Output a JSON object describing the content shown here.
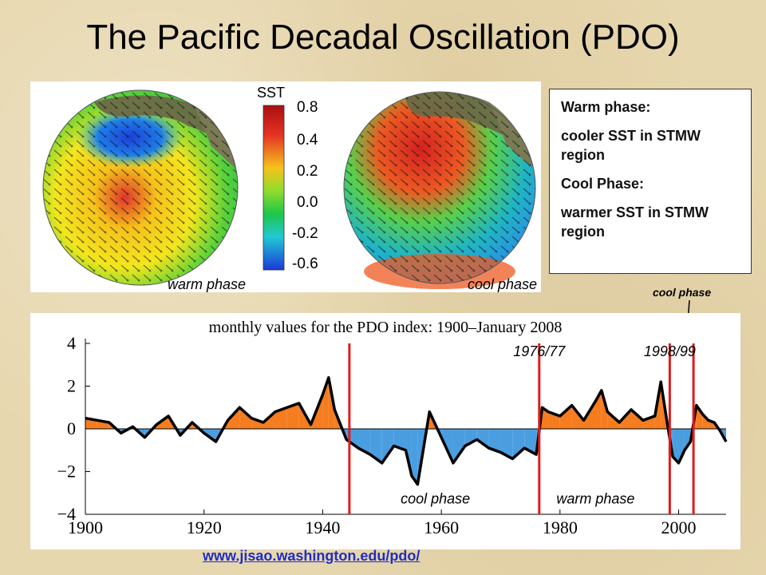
{
  "slide": {
    "title": "The Pacific Decadal Oscillation (PDO)",
    "footer_link": "www.jisao.washington.edu/pdo/"
  },
  "maps": {
    "colorbar_title": "SST",
    "colorbar_ticks": [
      "0.8",
      "0.4",
      "0.2",
      "0.0",
      "-0.2",
      "-0.6"
    ],
    "left_caption": "warm phase",
    "right_caption": "cool phase"
  },
  "info_box": {
    "warm_heading": "Warm phase:",
    "warm_text": "cooler SST in STMW region",
    "cool_heading": "Cool Phase:",
    "cool_text": "warmer SST in STMW region"
  },
  "annotation": {
    "cool_phase_label": "cool phase"
  },
  "chart_data": {
    "type": "area",
    "title": "monthly values for the PDO index: 1900–January 2008",
    "xlim": [
      1900,
      2008
    ],
    "ylim": [
      -4,
      4
    ],
    "xticks": [
      1900,
      1920,
      1940,
      1960,
      1980,
      2000
    ],
    "xtick_labels": [
      "1900",
      "1920",
      "1940",
      "1960",
      "1980",
      "2000"
    ],
    "yticks": [
      4,
      2,
      0,
      -2,
      -4
    ],
    "ytick_labels": [
      "4",
      "2",
      "0",
      "−2",
      "−4"
    ],
    "positive_color": "#f57c1f",
    "negative_color": "#4a9ee0",
    "smoothed_color": "#000000",
    "regime_line_color": "#e01b1b",
    "x": [
      1900,
      1902,
      1904,
      1906,
      1908,
      1910,
      1912,
      1914,
      1916,
      1918,
      1920,
      1922,
      1924,
      1926,
      1928,
      1930,
      1932,
      1934,
      1936,
      1938,
      1940,
      1941,
      1942,
      1944,
      1946,
      1948,
      1950,
      1952,
      1954,
      1955,
      1956,
      1958,
      1960,
      1962,
      1964,
      1966,
      1968,
      1970,
      1972,
      1974,
      1976,
      1977,
      1978,
      1980,
      1982,
      1984,
      1986,
      1987,
      1988,
      1990,
      1992,
      1994,
      1996,
      1997,
      1998,
      1999,
      2000,
      2001,
      2002,
      2003,
      2004,
      2005,
      2006,
      2007,
      2008
    ],
    "values": [
      0.5,
      0.4,
      0.3,
      -0.2,
      0.1,
      -0.4,
      0.2,
      0.6,
      -0.3,
      0.3,
      -0.2,
      -0.6,
      0.4,
      1.0,
      0.5,
      0.3,
      0.8,
      1.0,
      1.2,
      0.2,
      1.6,
      2.4,
      0.9,
      -0.5,
      -0.9,
      -1.2,
      -1.6,
      -0.8,
      -1.0,
      -2.2,
      -2.6,
      0.8,
      -0.4,
      -1.6,
      -0.8,
      -0.5,
      -0.9,
      -1.1,
      -1.4,
      -0.9,
      -1.2,
      1.0,
      0.8,
      0.6,
      1.1,
      0.4,
      1.3,
      1.8,
      0.8,
      0.3,
      0.9,
      0.4,
      0.6,
      2.2,
      0.4,
      -1.3,
      -1.6,
      -1.0,
      -0.6,
      1.1,
      0.7,
      0.4,
      0.3,
      -0.1,
      -0.6
    ],
    "regime_lines": [
      1944.5,
      1976.5,
      1998.5,
      2002.5
    ],
    "regime_labels": [
      {
        "text": "1976/77",
        "x": 1976.5,
        "y": 3.4
      },
      {
        "text": "1998/99",
        "x": 1998.5,
        "y": 3.4
      },
      {
        "text": "cool phase",
        "x": 1959,
        "y": -3.5
      },
      {
        "text": "warm phase",
        "x": 1986,
        "y": -3.5
      }
    ]
  }
}
